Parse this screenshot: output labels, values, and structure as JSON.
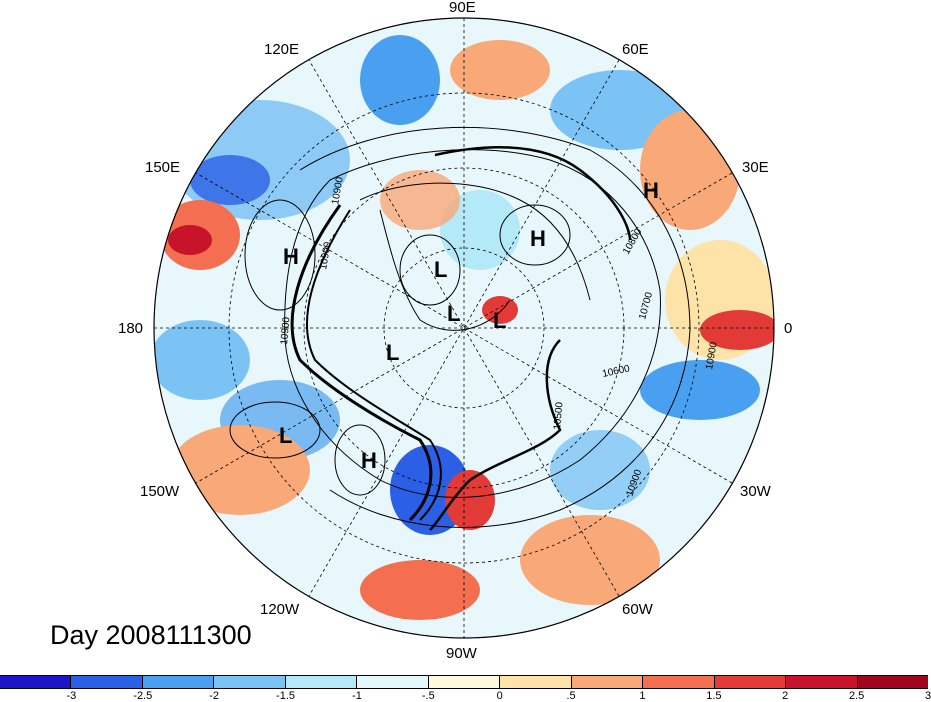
{
  "map": {
    "longitude_labels": [
      "90E",
      "60E",
      "30E",
      "0",
      "30W",
      "60W",
      "90W",
      "120W",
      "150W",
      "180",
      "150E",
      "120E"
    ],
    "pressure_markers": [
      {
        "label": "H"
      },
      {
        "label": "H"
      },
      {
        "label": "H"
      },
      {
        "label": "L"
      },
      {
        "label": "L"
      },
      {
        "label": "L"
      },
      {
        "label": "L"
      },
      {
        "label": "L"
      },
      {
        "label": "H"
      }
    ],
    "contour_labels": [
      "10900",
      "10900",
      "10900",
      "10800",
      "10700",
      "10600",
      "10500",
      "10900",
      "10900"
    ],
    "day_label": "Day 2008111300"
  },
  "colorbar": {
    "colors": [
      "#1e14c8",
      "#2a5fe6",
      "#4aa0f0",
      "#7cc3f5",
      "#b4eaf8",
      "#e4f8fb",
      "#fdf9dc",
      "#fde3a8",
      "#f9a878",
      "#f36f50",
      "#e23a36",
      "#c8142a",
      "#a0061e"
    ],
    "tick_labels": [
      "-3",
      "-2.5",
      "-2",
      "-1.5",
      "-1",
      "-.5",
      "0",
      ".5",
      "1",
      "1.5",
      "2",
      "2.5",
      "3"
    ]
  }
}
